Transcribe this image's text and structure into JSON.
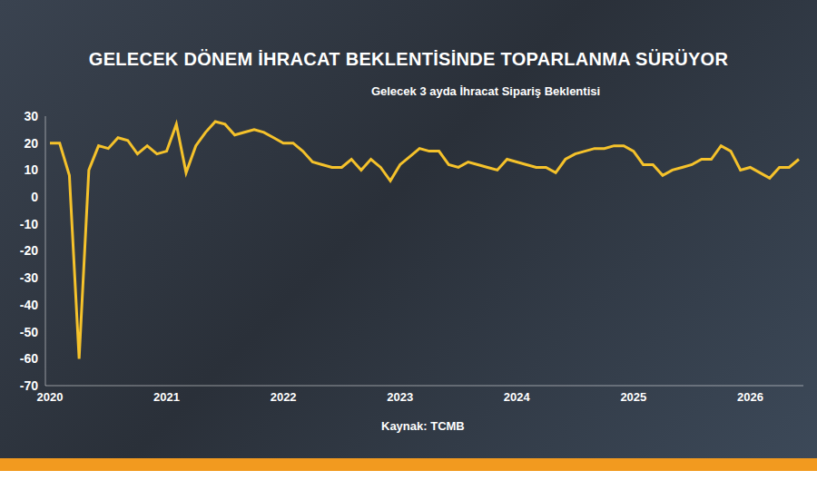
{
  "chart_data": {
    "type": "line",
    "title": "GELECEK DÖNEM İHRACAT BEKLENTİSİNDE TOPARLANMA SÜRÜYOR",
    "subtitle": "Gelecek 3 ayda İhracat Sipariş Beklentisi",
    "source": "Kaynak: TCMB",
    "categories": [
      "2020",
      null,
      null,
      null,
      null,
      null,
      null,
      null,
      null,
      null,
      null,
      null,
      "2021",
      null,
      null,
      null,
      null,
      null,
      null,
      null,
      null,
      null,
      null,
      null,
      "2022",
      null,
      null,
      null,
      null,
      null,
      null,
      null,
      null,
      null,
      null,
      null,
      "2023",
      null,
      null,
      null,
      null,
      null,
      null,
      null,
      null,
      null,
      null,
      null,
      "2024",
      null,
      null,
      null,
      null,
      null,
      null,
      null,
      null,
      null,
      null,
      null,
      "2025",
      null,
      null,
      null,
      null,
      null,
      null,
      null,
      null,
      null,
      null,
      null,
      "2026",
      null,
      null,
      null,
      null,
      null
    ],
    "values": [
      20,
      20,
      8,
      -60,
      10,
      19,
      18,
      22,
      21,
      16,
      19,
      16,
      17,
      27,
      9,
      19,
      24,
      28,
      27,
      23,
      24,
      25,
      24,
      22,
      20,
      20,
      17,
      13,
      12,
      11,
      11,
      14,
      10,
      14,
      11,
      6,
      12,
      15,
      18,
      17,
      17,
      12,
      11,
      13,
      12,
      11,
      10,
      14,
      13,
      12,
      11,
      11,
      9,
      14,
      16,
      17,
      18,
      18,
      19,
      19,
      17,
      12,
      12,
      8,
      10,
      11,
      12,
      14,
      14,
      19,
      17,
      10,
      11,
      9,
      7,
      11,
      11,
      14
    ],
    "color": "#f5c22b",
    "ylim": [
      -70,
      30
    ],
    "yticks": [
      30,
      20,
      10,
      0,
      -10,
      -20,
      -30,
      -40,
      -50,
      -60,
      -70
    ],
    "grid": false
  }
}
